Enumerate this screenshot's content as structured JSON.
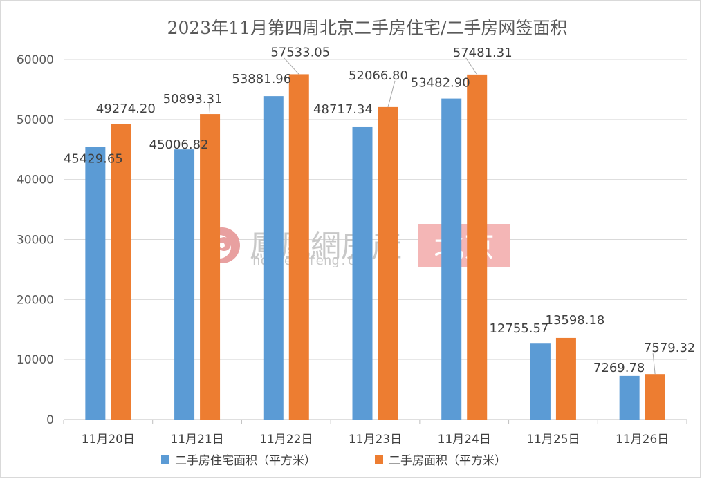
{
  "chart_data": {
    "type": "bar",
    "title": "2023年11月第四周北京二手房住宅/二手房网签面积",
    "categories": [
      "11月20日",
      "11月21日",
      "11月22日",
      "11月23日",
      "11月24日",
      "11月25日",
      "11月26日"
    ],
    "series": [
      {
        "name": "二手房住宅面积（平方米）",
        "color": "#5b9bd5",
        "values": [
          45429.65,
          45006.82,
          53881.96,
          48717.34,
          53482.9,
          12755.57,
          7269.78
        ],
        "labels": [
          "45429.65",
          "45006.82",
          "53881.96",
          "48717.34",
          "53482.90",
          "12755.57",
          "7269.78"
        ]
      },
      {
        "name": "二手房面积（平方米）",
        "color": "#ed7d31",
        "values": [
          49274.2,
          50893.31,
          57533.05,
          52066.8,
          57481.31,
          13598.18,
          7579.32
        ],
        "labels": [
          "49274.20",
          "50893.31",
          "57533.05",
          "52066.80",
          "57481.31",
          "13598.18",
          "7579.32"
        ]
      }
    ],
    "yticks": [
      "0",
      "10000",
      "20000",
      "30000",
      "40000",
      "50000",
      "60000"
    ],
    "ylim": [
      0,
      60000
    ],
    "grid": true,
    "legend_position": "bottom"
  },
  "watermark": {
    "brand": "鳳凰網房產",
    "url": "house.ifeng.com",
    "city": "北京",
    "logo_color": "#e8a0a0",
    "city_bg": "#f4b6b6"
  }
}
